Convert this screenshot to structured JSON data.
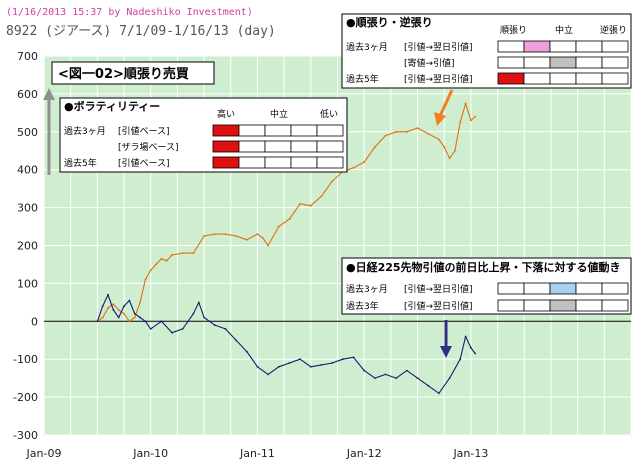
{
  "header": {
    "line1": "(1/16/2013 15:37 by Nadeshiko Investment)",
    "line2": "8922 (ジアース) 7/1/09-1/16/13 (day)"
  },
  "figure_label": "<図一02>順張り売買",
  "colors": {
    "plot_bg": "#cfeecf",
    "grid": "#ffffff",
    "orange_series": "#e07010",
    "navy_series": "#1a1a70",
    "red_cell": "#e01010",
    "pink_cell": "#f0a0d8",
    "gray_cell": "#c0c0c0",
    "blue_cell": "#a8d0f0",
    "arrow_orange": "#f08020",
    "arrow_navy": "#303080",
    "arrow_gray": "#909090"
  },
  "box_trend": {
    "title": "●順張り・逆張り",
    "col_labels": [
      "順張り",
      "中立",
      "逆張り"
    ],
    "rows": [
      {
        "period": "過去3ヶ月",
        "basis": "[引値→翌日引値]",
        "filled": 1,
        "color": "pink"
      },
      {
        "period": "",
        "basis": "[寄値→引値]",
        "filled": 2,
        "color": "gray"
      },
      {
        "period": "過去5年",
        "basis": "[引値→翌日引値]",
        "filled": 0,
        "color": "red"
      }
    ]
  },
  "box_vol": {
    "title": "●ボラティリティー",
    "col_labels": [
      "高い",
      "中立",
      "低い"
    ],
    "rows": [
      {
        "period": "過去3ヶ月",
        "basis": "[引値ベース]",
        "filled": 0,
        "color": "red"
      },
      {
        "period": "",
        "basis": "[ザラ場ベース]",
        "filled": 0,
        "color": "red"
      },
      {
        "period": "過去5年",
        "basis": "[引値ベース]",
        "filled": 0,
        "color": "red"
      }
    ]
  },
  "box_nikkei": {
    "title": "●日経225先物引値の前日比上昇・下落に対する値動き",
    "rows": [
      {
        "period": "過去3ヶ月",
        "basis": "[引値→翌日引値]",
        "filled": 2,
        "color": "blue"
      },
      {
        "period": "過去3年",
        "basis": "[引値→翌日引値]",
        "filled": 2,
        "color": "gray"
      }
    ]
  },
  "chart_data": {
    "type": "line",
    "title": "",
    "xlabel": "",
    "ylabel": "",
    "x_tick_labels": [
      "Jan-09",
      "Jan-10",
      "Jan-11",
      "Jan-12",
      "Jan-13"
    ],
    "x_tick_years": [
      2009,
      2010,
      2011,
      2012,
      2013
    ],
    "y_tick_labels": [
      "700",
      "600",
      "500",
      "400",
      "300",
      "200",
      "100",
      "0",
      "-100",
      "-200",
      "-300"
    ],
    "xlim": [
      2009.0,
      2014.5
    ],
    "ylim": [
      -300,
      700
    ],
    "grid": true,
    "series": [
      {
        "name": "",
        "color": "orange",
        "points": [
          [
            2009.5,
            0
          ],
          [
            2009.55,
            10
          ],
          [
            2009.6,
            35
          ],
          [
            2009.65,
            45
          ],
          [
            2009.7,
            30
          ],
          [
            2009.75,
            20
          ],
          [
            2009.8,
            0
          ],
          [
            2009.85,
            10
          ],
          [
            2009.9,
            50
          ],
          [
            2009.95,
            110
          ],
          [
            2010.0,
            135
          ],
          [
            2010.05,
            150
          ],
          [
            2010.1,
            165
          ],
          [
            2010.15,
            160
          ],
          [
            2010.2,
            175
          ],
          [
            2010.3,
            180
          ],
          [
            2010.4,
            180
          ],
          [
            2010.5,
            225
          ],
          [
            2010.6,
            230
          ],
          [
            2010.7,
            230
          ],
          [
            2010.8,
            225
          ],
          [
            2010.9,
            215
          ],
          [
            2011.0,
            230
          ],
          [
            2011.05,
            220
          ],
          [
            2011.1,
            200
          ],
          [
            2011.2,
            250
          ],
          [
            2011.3,
            270
          ],
          [
            2011.4,
            310
          ],
          [
            2011.5,
            305
          ],
          [
            2011.6,
            330
          ],
          [
            2011.7,
            370
          ],
          [
            2011.8,
            395
          ],
          [
            2011.9,
            405
          ],
          [
            2012.0,
            420
          ],
          [
            2012.1,
            460
          ],
          [
            2012.2,
            490
          ],
          [
            2012.3,
            500
          ],
          [
            2012.4,
            500
          ],
          [
            2012.5,
            510
          ],
          [
            2012.6,
            495
          ],
          [
            2012.7,
            480
          ],
          [
            2012.75,
            460
          ],
          [
            2012.8,
            430
          ],
          [
            2012.85,
            450
          ],
          [
            2012.9,
            525
          ],
          [
            2012.95,
            575
          ],
          [
            2013.0,
            530
          ],
          [
            2013.04,
            540
          ]
        ]
      },
      {
        "name": "",
        "color": "navy",
        "points": [
          [
            2009.5,
            0
          ],
          [
            2009.55,
            40
          ],
          [
            2009.6,
            70
          ],
          [
            2009.65,
            30
          ],
          [
            2009.7,
            10
          ],
          [
            2009.75,
            40
          ],
          [
            2009.8,
            55
          ],
          [
            2009.85,
            20
          ],
          [
            2009.9,
            10
          ],
          [
            2009.95,
            0
          ],
          [
            2010.0,
            -20
          ],
          [
            2010.1,
            0
          ],
          [
            2010.2,
            -30
          ],
          [
            2010.3,
            -20
          ],
          [
            2010.4,
            20
          ],
          [
            2010.45,
            50
          ],
          [
            2010.5,
            10
          ],
          [
            2010.6,
            -10
          ],
          [
            2010.7,
            -20
          ],
          [
            2010.8,
            -50
          ],
          [
            2010.9,
            -80
          ],
          [
            2011.0,
            -120
          ],
          [
            2011.1,
            -140
          ],
          [
            2011.2,
            -120
          ],
          [
            2011.3,
            -110
          ],
          [
            2011.4,
            -100
          ],
          [
            2011.5,
            -120
          ],
          [
            2011.6,
            -115
          ],
          [
            2011.7,
            -110
          ],
          [
            2011.8,
            -100
          ],
          [
            2011.9,
            -95
          ],
          [
            2012.0,
            -130
          ],
          [
            2012.1,
            -150
          ],
          [
            2012.2,
            -140
          ],
          [
            2012.3,
            -150
          ],
          [
            2012.4,
            -130
          ],
          [
            2012.5,
            -150
          ],
          [
            2012.6,
            -170
          ],
          [
            2012.7,
            -190
          ],
          [
            2012.8,
            -150
          ],
          [
            2012.9,
            -100
          ],
          [
            2012.95,
            -40
          ],
          [
            2013.0,
            -70
          ],
          [
            2013.04,
            -85
          ]
        ]
      }
    ],
    "annotations": [
      "<図一02>順張り売買"
    ]
  }
}
